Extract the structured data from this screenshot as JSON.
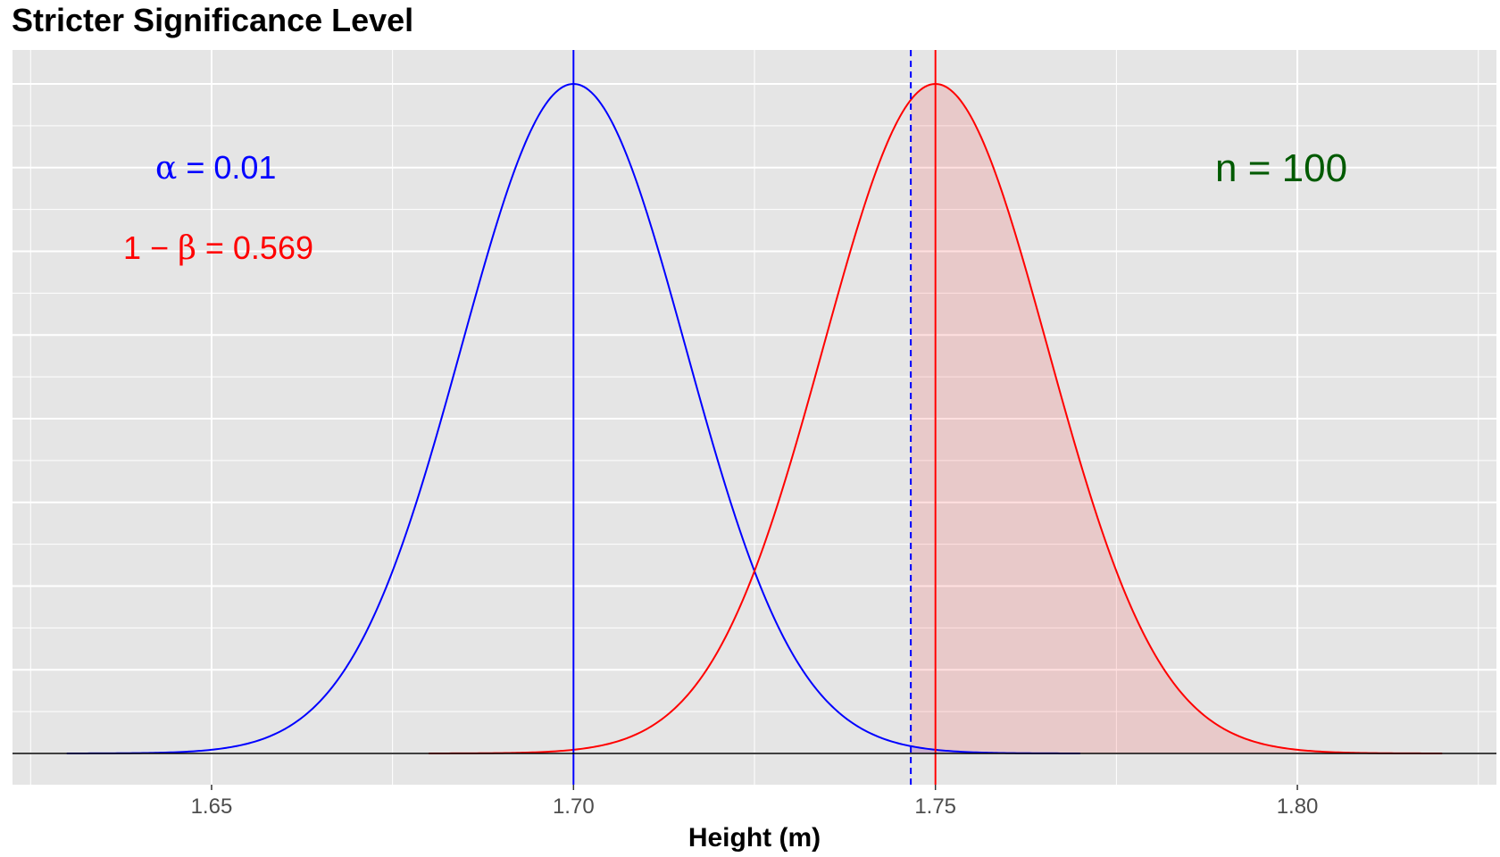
{
  "title": "Stricter Significance Level",
  "chart_data": {
    "type": "line",
    "title": "Stricter Significance Level",
    "xlabel": "Height (m)",
    "ylabel": "",
    "xlim": [
      1.6225,
      1.8275
    ],
    "x_ticks": [
      1.65,
      1.7,
      1.75,
      1.8
    ],
    "x_tick_labels": [
      "1.65",
      "1.70",
      "1.75",
      "1.80"
    ],
    "y_tick_labels": [],
    "grid": true,
    "series": [
      {
        "mean": 1.7,
        "sd": 0.0155,
        "x_range": [
          1.63,
          1.77
        ],
        "color": "#0000ff"
      },
      {
        "mean": 1.75,
        "sd": 0.0155,
        "x_range": [
          1.68,
          1.82
        ],
        "color": "#ff0000"
      }
    ],
    "critical_value": 1.7466,
    "shaded_region": {
      "from": 1.7466,
      "to": 1.82,
      "color": "#ff0000",
      "opacity": 0.12
    },
    "annotations": {
      "alpha_symbol": "α",
      "alpha_eq": " = ",
      "alpha_value": "0.01",
      "power_prefix": "1 − ",
      "power_symbol": "β",
      "power_eq": " = ",
      "power_value": "0.569",
      "n_label": "n",
      "n_eq": " = ",
      "n_value": "100"
    },
    "colors": {
      "panel_bg": "#e5e5e5",
      "grid": "#ffffff",
      "alpha_text": "#0000ff",
      "power_text": "#ff0000",
      "n_text": "#005a00"
    }
  }
}
